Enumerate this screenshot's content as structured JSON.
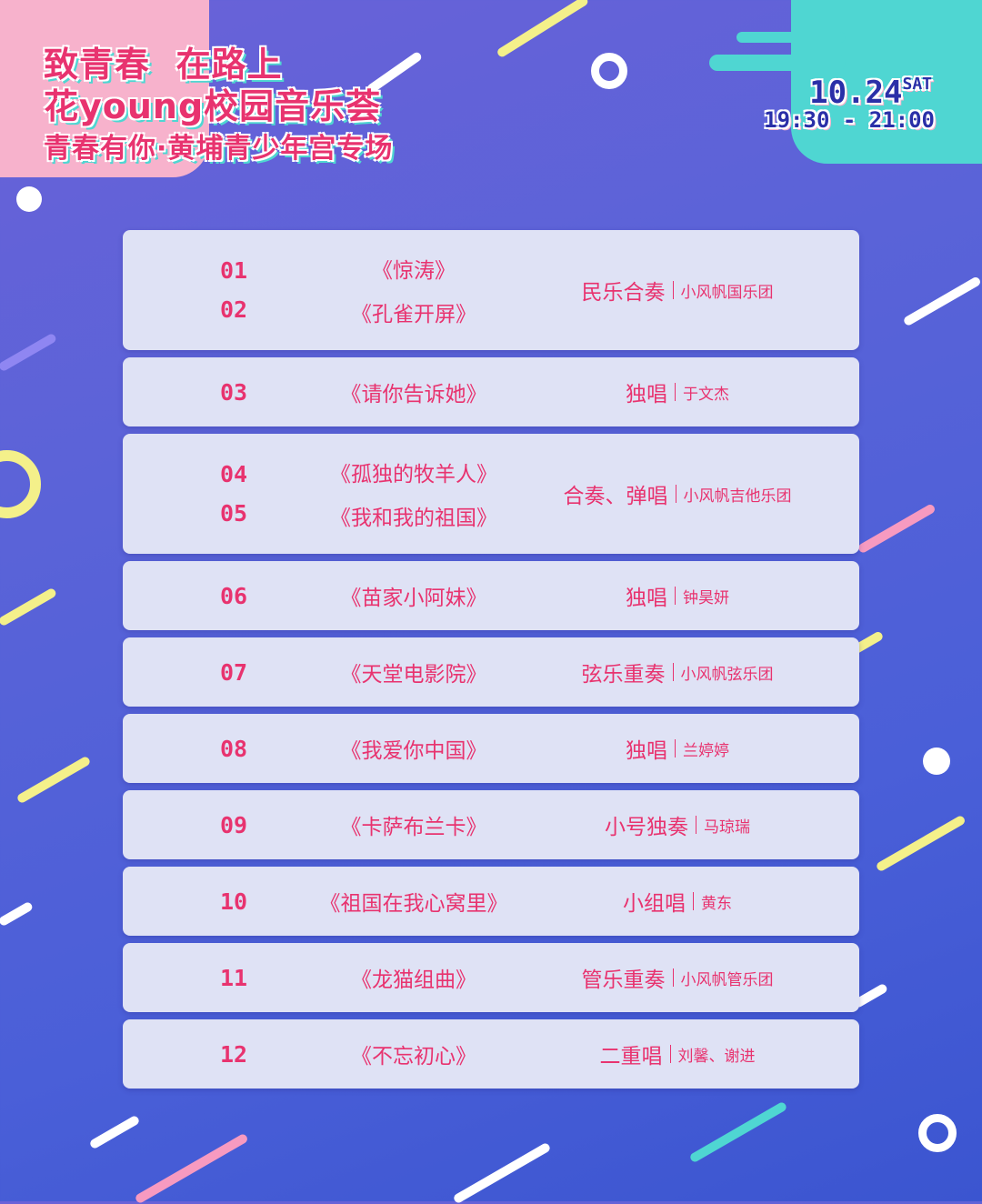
{
  "header": {
    "line1": "致青春  在路上",
    "line2": "花young校园音乐荟",
    "line3": "青春有你·黄埔青少年宫专场",
    "date": "10.24",
    "weekday": "SAT",
    "time": "19:30 - 21:00"
  },
  "colors": {
    "accent": "#e8336f",
    "card": "#dfe2f5",
    "teal": "#4fd6d2",
    "pink": "#f7b2cc",
    "date_text": "#2a2fa8"
  },
  "program": [
    {
      "numbers": [
        "01",
        "02"
      ],
      "songs": [
        "《惊涛》",
        "《孔雀开屏》"
      ],
      "type": "民乐合奏",
      "performer": "小风帆国乐团"
    },
    {
      "numbers": [
        "03"
      ],
      "songs": [
        "《请你告诉她》"
      ],
      "type": "独唱",
      "performer": "于文杰"
    },
    {
      "numbers": [
        "04",
        "05"
      ],
      "songs": [
        "《孤独的牧羊人》",
        "《我和我的祖国》"
      ],
      "type": "合奏、弹唱",
      "performer": "小风帆吉他乐团"
    },
    {
      "numbers": [
        "06"
      ],
      "songs": [
        "《苗家小阿妹》"
      ],
      "type": "独唱",
      "performer": "钟昊妍"
    },
    {
      "numbers": [
        "07"
      ],
      "songs": [
        "《天堂电影院》"
      ],
      "type": "弦乐重奏",
      "performer": "小风帆弦乐团"
    },
    {
      "numbers": [
        "08"
      ],
      "songs": [
        "《我爱你中国》"
      ],
      "type": "独唱",
      "performer": "兰婷婷"
    },
    {
      "numbers": [
        "09"
      ],
      "songs": [
        "《卡萨布兰卡》"
      ],
      "type": "小号独奏",
      "performer": "马琼瑞"
    },
    {
      "numbers": [
        "10"
      ],
      "songs": [
        "《祖国在我心窝里》"
      ],
      "type": "小组唱",
      "performer": "黄东"
    },
    {
      "numbers": [
        "11"
      ],
      "songs": [
        "《龙猫组曲》"
      ],
      "type": "管乐重奏",
      "performer": "小风帆管乐团"
    },
    {
      "numbers": [
        "12"
      ],
      "songs": [
        "《不忘初心》"
      ],
      "type": "二重唱",
      "performer": "刘馨、谢进"
    }
  ]
}
